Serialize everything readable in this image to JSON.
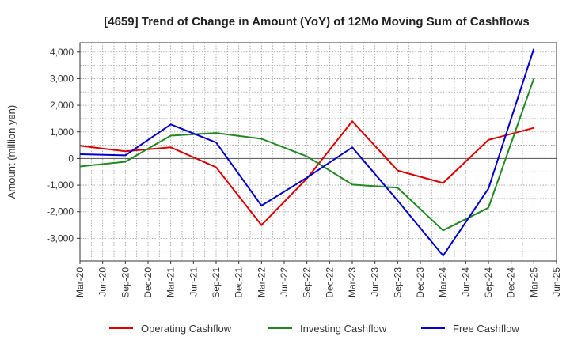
{
  "chart_data": {
    "type": "line",
    "title": "[4659]  Trend of Change in Amount (YoY) of 12Mo Moving Sum of Cashflows",
    "xlabel": "",
    "ylabel": "Amount (million yen)",
    "ylim": [
      -3850,
      4350
    ],
    "yticks": [
      4000,
      3000,
      2000,
      1000,
      0,
      -1000,
      -2000,
      -3000
    ],
    "ytick_labels": [
      "4,000",
      "3,000",
      "2,000",
      "1,000",
      "0",
      "-1,000",
      "-2,000",
      "-3,000"
    ],
    "categories": [
      "Mar-20",
      "Jun-20",
      "Sep-20",
      "Dec-20",
      "Mar-21",
      "Jun-21",
      "Sep-21",
      "Dec-21",
      "Mar-22",
      "Jun-22",
      "Sep-22",
      "Dec-22",
      "Mar-23",
      "Jun-23",
      "Sep-23",
      "Dec-23",
      "Mar-24",
      "Jun-24",
      "Sep-24",
      "Dec-24",
      "Mar-25",
      "Jun-25"
    ],
    "grid": true,
    "legend_position": "bottom",
    "series": [
      {
        "name": "Operating Cashflow",
        "color": "#dd0000",
        "values": [
          480,
          null,
          270,
          null,
          420,
          null,
          -330,
          null,
          -2500,
          null,
          -750,
          null,
          1400,
          null,
          -450,
          null,
          -920,
          null,
          700,
          null,
          1150,
          null
        ]
      },
      {
        "name": "Investing Cashflow",
        "color": "#228822",
        "values": [
          -300,
          null,
          -120,
          null,
          860,
          null,
          960,
          null,
          740,
          null,
          80,
          null,
          -980,
          null,
          -1100,
          null,
          -2700,
          null,
          -1850,
          null,
          3000,
          null
        ]
      },
      {
        "name": "Free Cashflow",
        "color": "#0000cc",
        "values": [
          160,
          null,
          120,
          null,
          1280,
          null,
          600,
          null,
          -1770,
          null,
          -720,
          null,
          420,
          null,
          -1580,
          null,
          -3650,
          null,
          -1130,
          null,
          4120,
          null
        ]
      }
    ]
  }
}
